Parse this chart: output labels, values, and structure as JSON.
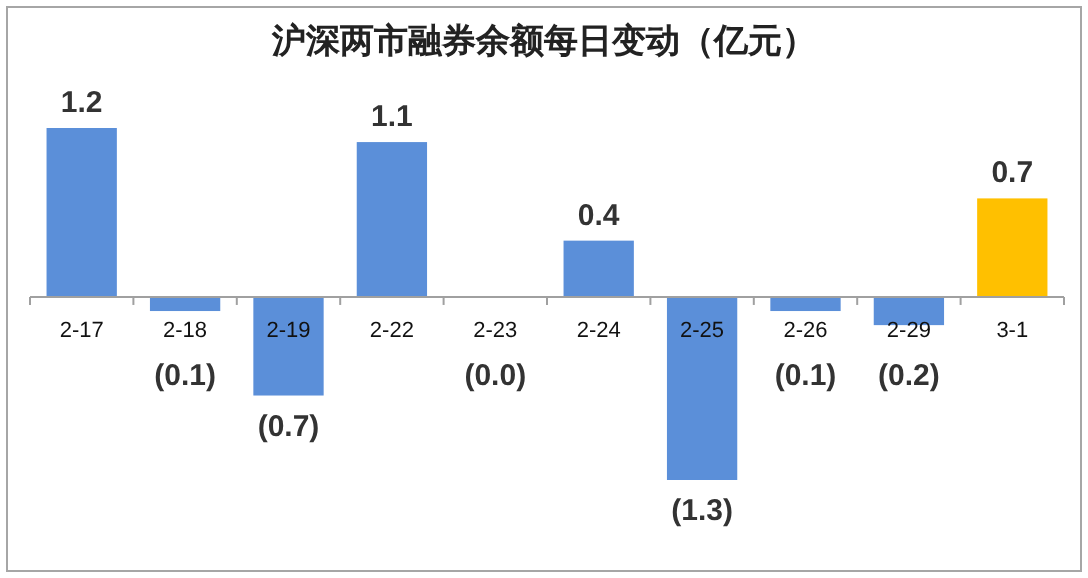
{
  "chart_data": {
    "type": "bar",
    "title": "沪深两市融券余额每日变动（亿元）",
    "categories": [
      "2-17",
      "2-18",
      "2-19",
      "2-22",
      "2-23",
      "2-24",
      "2-25",
      "2-26",
      "2-29",
      "3-1"
    ],
    "values": [
      1.2,
      -0.1,
      -0.7,
      1.1,
      0,
      0.4,
      -1.3,
      -0.1,
      -0.2,
      0.7
    ],
    "value_labels": [
      "1.2",
      "(0.1)",
      "(0.7)",
      "1.1",
      "(0.0)",
      "0.4",
      "(1.3)",
      "(0.1)",
      "(0.2)",
      "0.7"
    ],
    "colors": [
      "#5b8fd9",
      "#5b8fd9",
      "#5b8fd9",
      "#5b8fd9",
      "#5b8fd9",
      "#5b8fd9",
      "#5b8fd9",
      "#5b8fd9",
      "#5b8fd9",
      "#ffc000"
    ]
  }
}
